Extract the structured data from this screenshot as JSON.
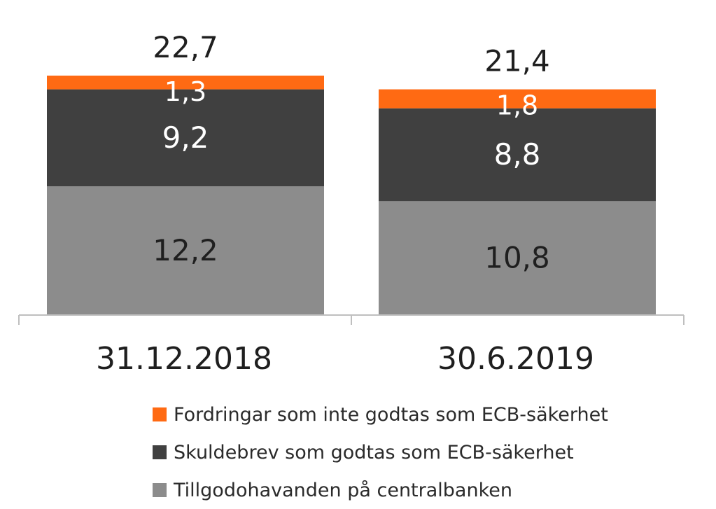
{
  "chart_data": {
    "type": "bar",
    "stacked": true,
    "categories": [
      "31.12.2018",
      "30.6.2019"
    ],
    "totals": [
      "22,7",
      "21,4"
    ],
    "series": [
      {
        "name": "Tillgodohavanden på centralbanken",
        "values": [
          12.2,
          10.8
        ],
        "labels": [
          "12,2",
          "10,8"
        ],
        "color": "#8c8c8c",
        "label_color": "#1f1f1f"
      },
      {
        "name": "Skuldebrev som godtas som ECB-säkerhet",
        "values": [
          9.2,
          8.8
        ],
        "labels": [
          "9,2",
          "8,8"
        ],
        "color": "#404040",
        "label_color": "#ffffff"
      },
      {
        "name": "Fordringar som inte godtas som ECB-säkerhet",
        "values": [
          1.3,
          1.8
        ],
        "labels": [
          "1,3",
          "1,8"
        ],
        "color": "#ff6a13",
        "label_color": "#ffffff"
      }
    ],
    "legend_order": [
      2,
      1,
      0
    ],
    "legend_placement": "bottom",
    "grid": false,
    "ylim": [
      0,
      22.7
    ],
    "axis_color": "#bfbfbf"
  }
}
